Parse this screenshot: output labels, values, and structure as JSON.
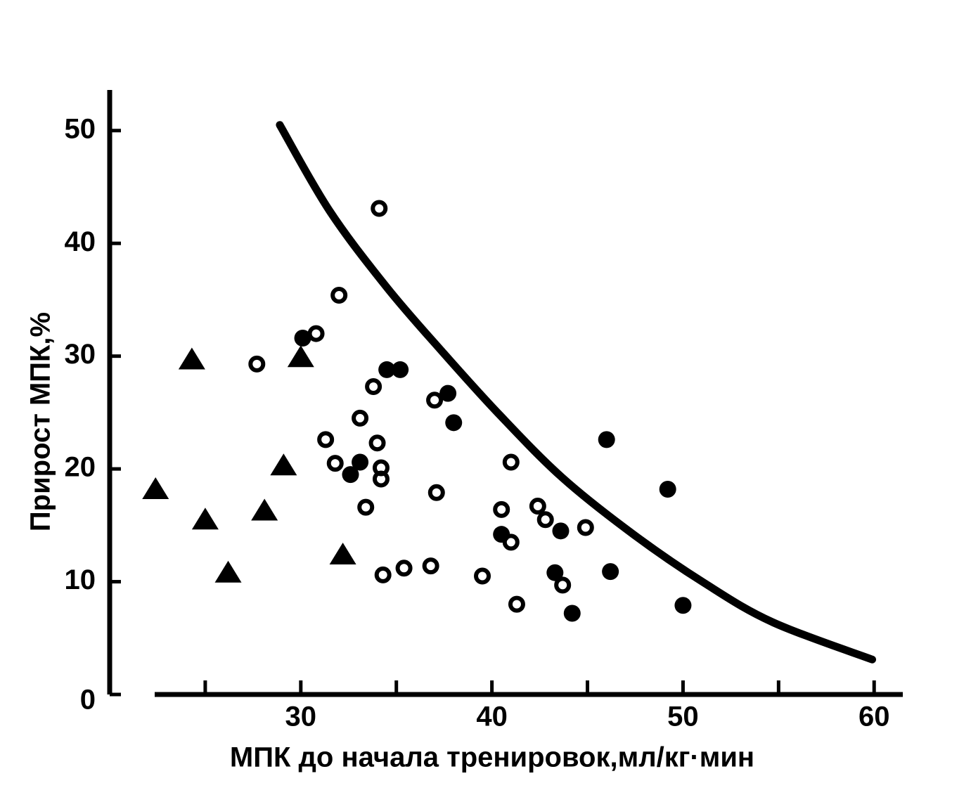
{
  "chart_data": {
    "type": "scatter",
    "x_label": "МПК до начала тренировок,мл/кг·мин",
    "y_label": "Прирост МПК,%",
    "xlim": [
      20,
      61.5
    ],
    "ylim": [
      0,
      53.6
    ],
    "xticks": [
      30,
      40,
      50,
      60
    ],
    "xminor": [
      25,
      35,
      45,
      55
    ],
    "yticks": [
      0,
      10,
      20,
      30,
      40,
      50
    ],
    "grid": false,
    "series": [
      {
        "marker": "triangle",
        "color": "#000000",
        "x": [
          22.4,
          24.3,
          25.0,
          26.2,
          28.1,
          29.1,
          30.0,
          32.2
        ],
        "values": [
          18.2,
          29.7,
          15.5,
          10.8,
          16.3,
          20.3,
          29.9,
          12.4
        ]
      },
      {
        "marker": "open-circle",
        "color": "#000000",
        "x": [
          34.1,
          32.0,
          30.8,
          27.7,
          33.8,
          37.0,
          33.1,
          31.3,
          34.0,
          31.8,
          34.2,
          34.2,
          37.1,
          33.4,
          41.0,
          40.5,
          42.4,
          42.8,
          41.0,
          44.9,
          34.3,
          35.4,
          36.8,
          39.5,
          41.3,
          43.7
        ],
        "values": [
          43.1,
          35.4,
          32.0,
          29.3,
          27.3,
          26.1,
          24.5,
          22.6,
          22.3,
          20.5,
          20.1,
          19.1,
          17.9,
          16.6,
          20.6,
          16.4,
          16.7,
          15.5,
          13.5,
          14.8,
          10.6,
          11.2,
          11.4,
          10.5,
          8.0,
          9.7
        ]
      },
      {
        "marker": "filled-circle",
        "color": "#000000",
        "x": [
          30.1,
          34.5,
          35.2,
          37.7,
          38.0,
          33.1,
          32.6,
          40.5,
          43.6,
          43.3,
          44.2,
          46.0,
          46.2,
          49.2,
          50.0
        ],
        "values": [
          31.6,
          28.8,
          28.8,
          26.7,
          24.1,
          20.6,
          19.5,
          14.2,
          14.5,
          10.8,
          7.2,
          22.6,
          10.9,
          18.2,
          7.9
        ]
      },
      {
        "marker": "line",
        "color": "#000000",
        "x": [
          28.9,
          31.5,
          34.5,
          37.4,
          40.4,
          43.7,
          47.4,
          51.1,
          54.7,
          59.9
        ],
        "values": [
          50.5,
          42.9,
          36.1,
          30.4,
          24.8,
          19.2,
          14.2,
          9.9,
          6.4,
          3.1
        ]
      }
    ]
  }
}
